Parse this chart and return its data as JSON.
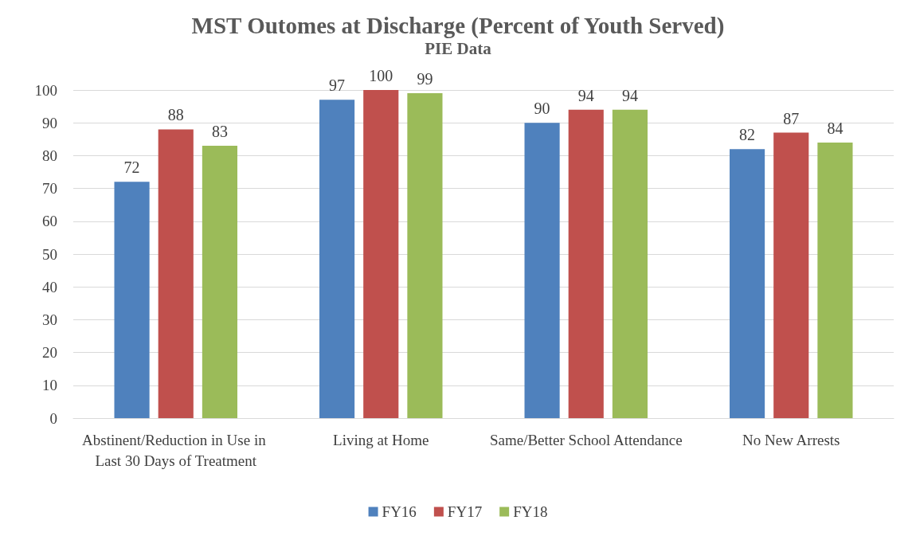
{
  "chart_data": {
    "type": "bar",
    "title": "MST Outomes at Discharge (Percent of Youth Served)",
    "subtitle": "PIE Data",
    "categories": [
      "Abstinent/Reduction in Use in Last 30 Days of Treatment",
      "Living at Home",
      "Same/Better School Attendance",
      "No New Arrests"
    ],
    "series": [
      {
        "name": "FY16",
        "color": "#4f81bd",
        "values": [
          72,
          97,
          90,
          82
        ]
      },
      {
        "name": "FY17",
        "color": "#c0504d",
        "values": [
          88,
          100,
          94,
          87
        ]
      },
      {
        "name": "FY18",
        "color": "#9bbb59",
        "values": [
          83,
          99,
          94,
          84
        ]
      }
    ],
    "ylim": [
      0,
      100
    ],
    "yticks": [
      0,
      10,
      20,
      30,
      40,
      50,
      60,
      70,
      80,
      90,
      100
    ],
    "grid": "y",
    "legend": "bottom",
    "data_labels": true
  }
}
